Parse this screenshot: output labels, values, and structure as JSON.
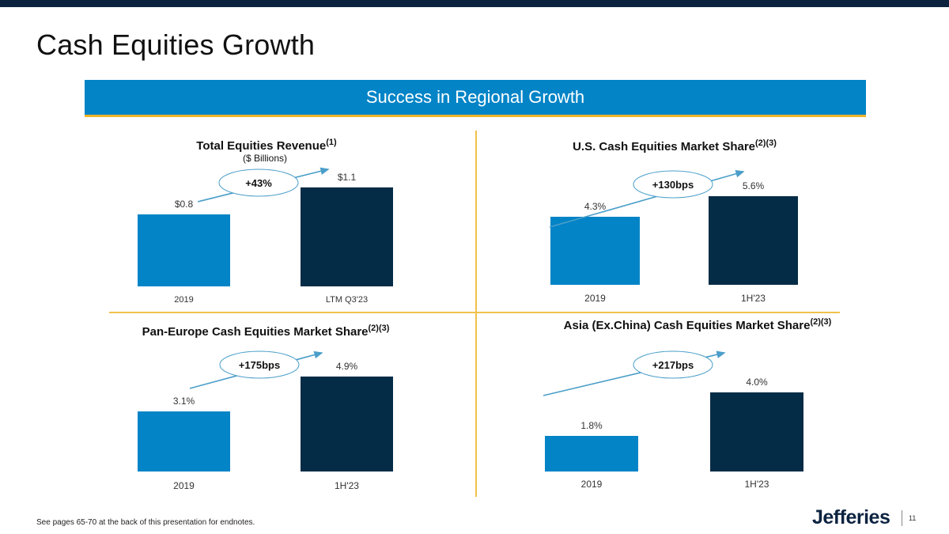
{
  "page": {
    "title": "Cash Equities Growth",
    "banner": "Success in Regional Growth",
    "footnote": "See pages 65-70 at the back of this presentation for endnotes.",
    "logo_text": "Jefferies",
    "page_number": "11"
  },
  "colors": {
    "bar_2019": "#0284c7",
    "bar_latest": "#052c46",
    "accent_line": "#f0c14b",
    "arrow": "#4a9ec9"
  },
  "chart_data": [
    {
      "type": "bar",
      "title": "Total Equities Revenue",
      "title_sup": "(1)",
      "subtitle": "($ Billions)",
      "categories": [
        "2019",
        "LTM Q3'23"
      ],
      "values": [
        0.8,
        1.1
      ],
      "value_labels": [
        "$0.8",
        "$1.1"
      ],
      "growth_label": "+43%"
    },
    {
      "type": "bar",
      "title": "U.S. Cash Equities Market Share",
      "title_sup": "(2)(3)",
      "subtitle": "",
      "categories": [
        "2019",
        "1H'23"
      ],
      "values": [
        4.3,
        5.6
      ],
      "value_labels": [
        "4.3%",
        "5.6%"
      ],
      "growth_label": "+130bps"
    },
    {
      "type": "bar",
      "title": "Pan-Europe Cash Equities Market Share",
      "title_sup": "(2)(3)",
      "subtitle": "",
      "categories": [
        "2019",
        "1H'23"
      ],
      "values": [
        3.1,
        4.9
      ],
      "value_labels": [
        "3.1%",
        "4.9%"
      ],
      "growth_label": "+175bps"
    },
    {
      "type": "bar",
      "title": "Asia (Ex.China) Cash Equities Market Share",
      "title_sup": "(2)(3)",
      "subtitle": "",
      "categories": [
        "2019",
        "1H'23"
      ],
      "values": [
        1.8,
        4.0
      ],
      "value_labels": [
        "1.8%",
        "4.0%"
      ],
      "growth_label": "+217bps"
    }
  ]
}
